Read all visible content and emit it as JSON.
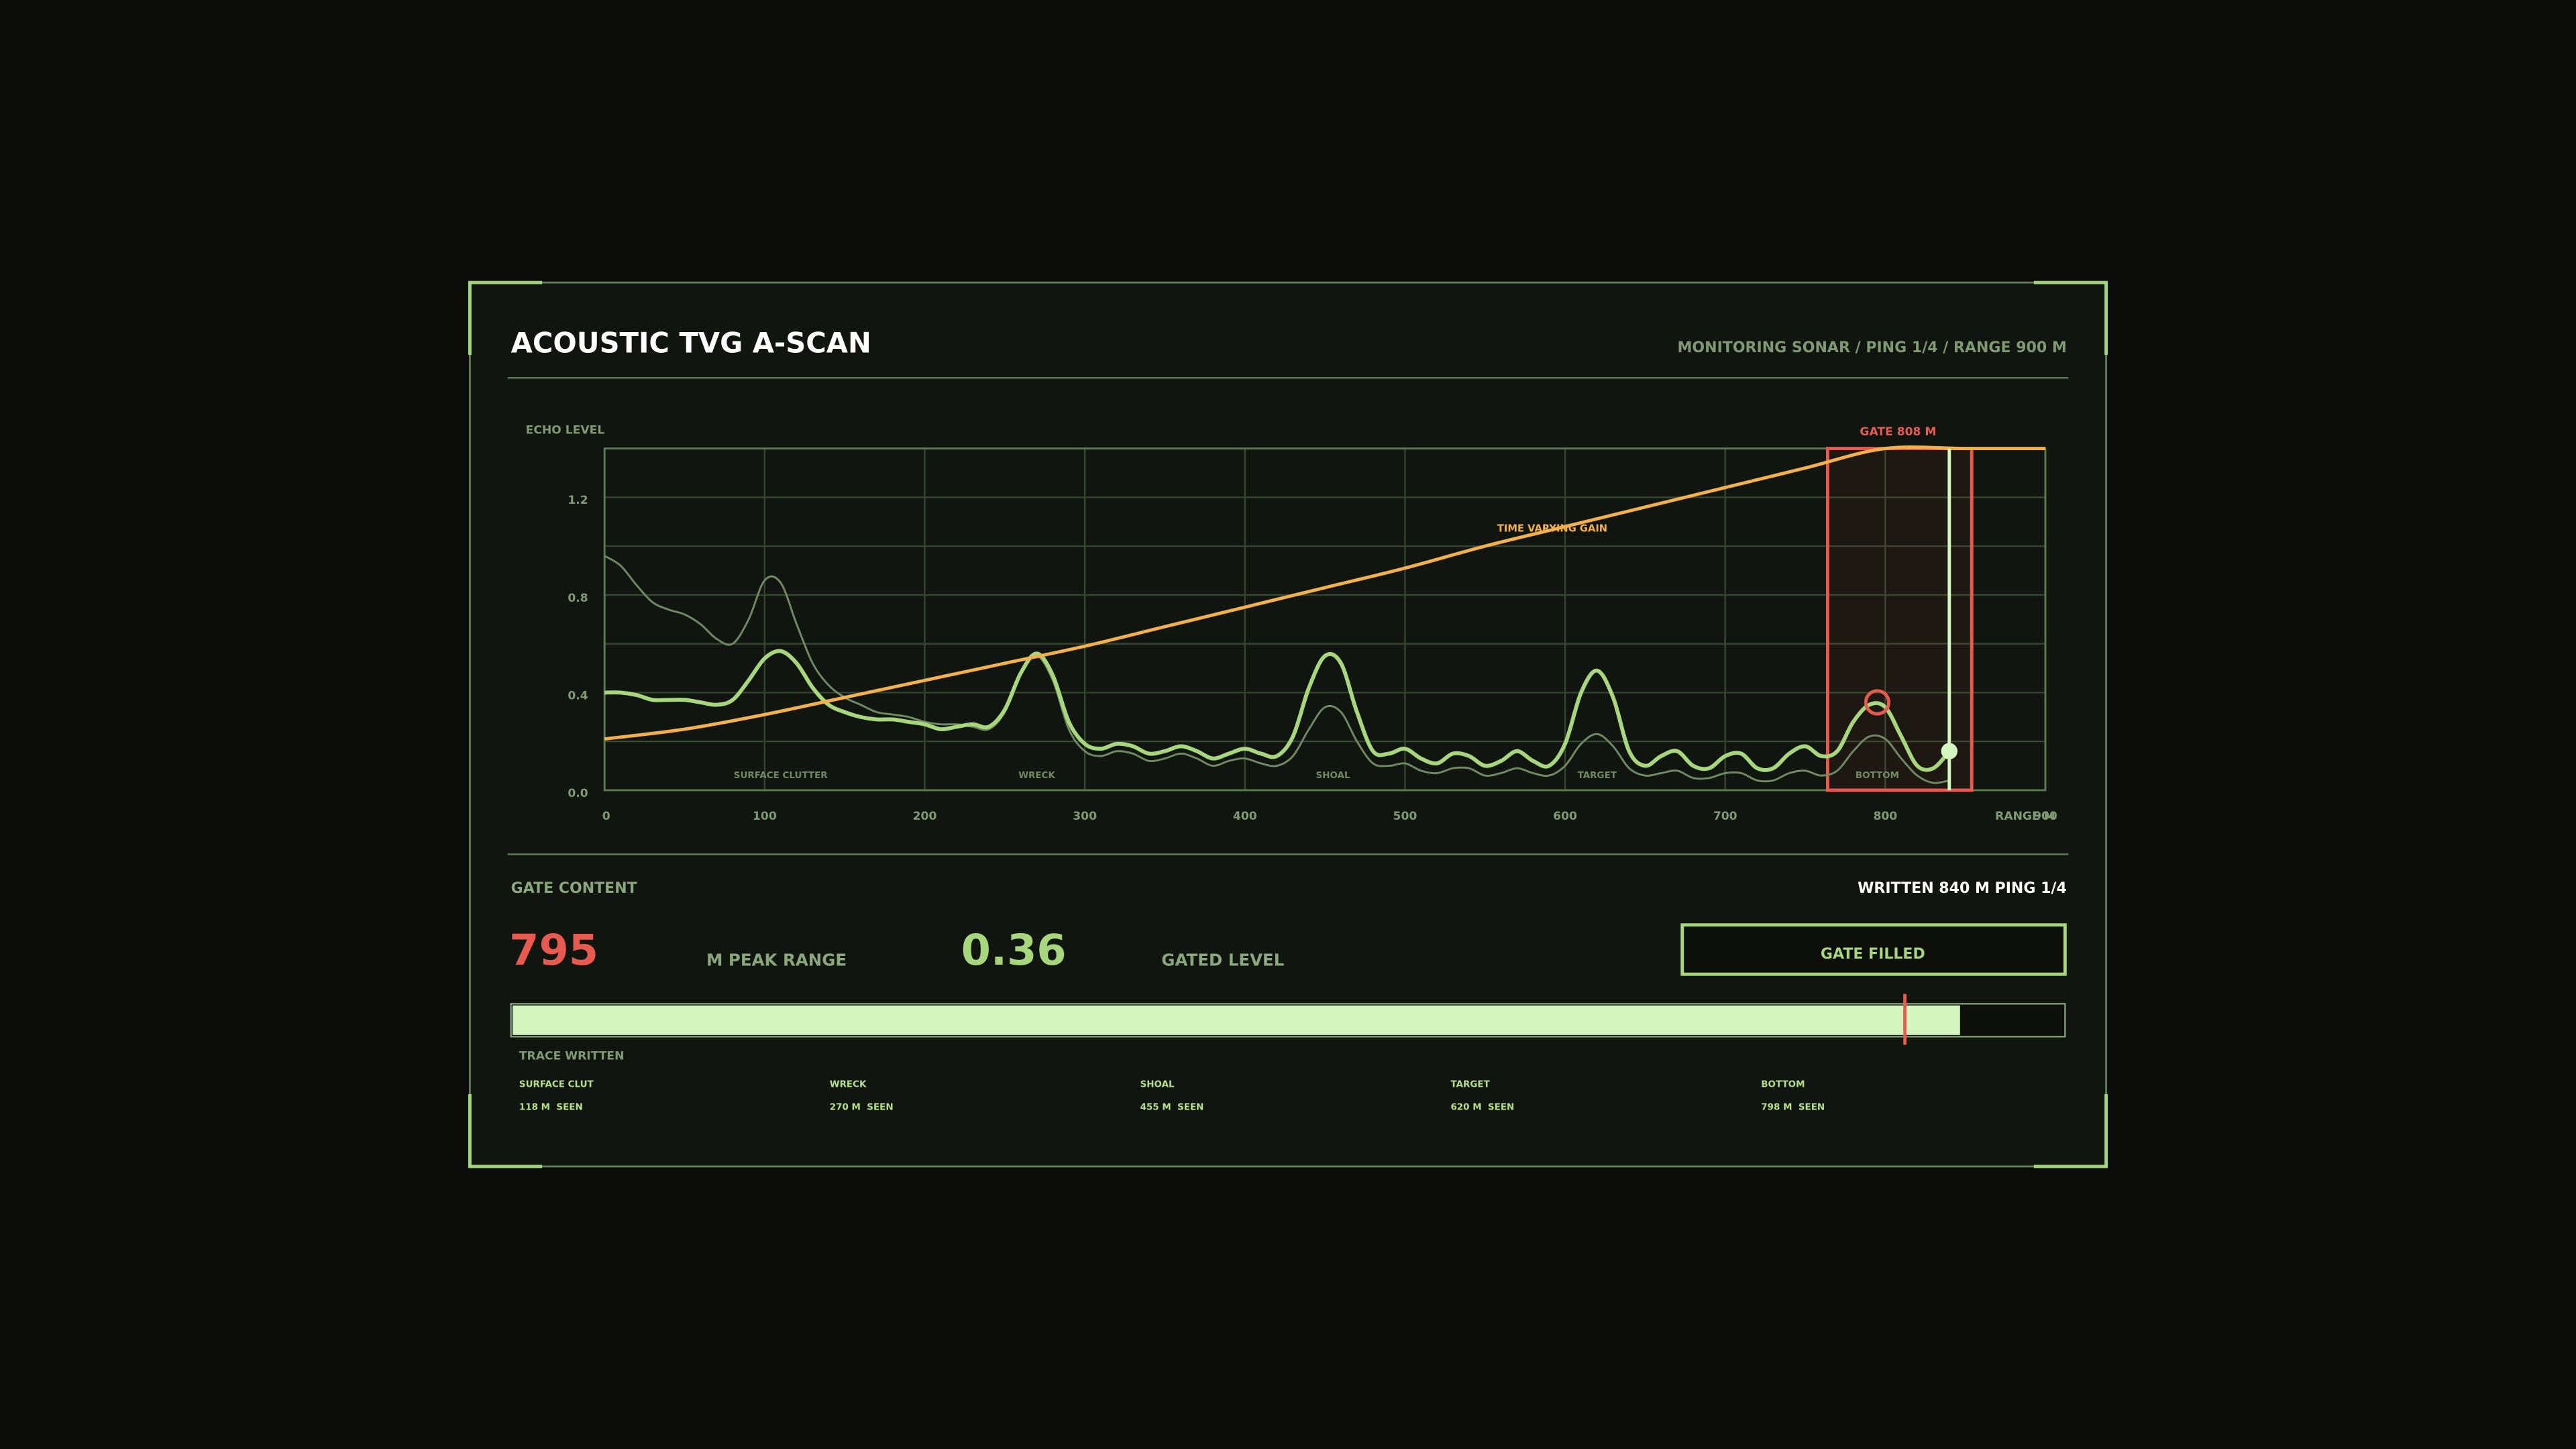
{
  "header": {
    "title": "ACOUSTIC TVG A-SCAN",
    "status": "MONITORING SONAR / PING 1/4 / RANGE 900 M"
  },
  "chart_data": {
    "type": "line",
    "y_label": "ECHO LEVEL",
    "x_label": "RANGE M",
    "xlim": [
      0,
      900
    ],
    "xticks": [
      0,
      100,
      200,
      300,
      400,
      500,
      600,
      700,
      800,
      900
    ],
    "ylim": [
      0,
      1.4
    ],
    "yticks": [
      {
        "value": 0,
        "label": "0.0"
      },
      0.4,
      0.8,
      1.2
    ],
    "ygrid": [
      0.2,
      0.6,
      1.0,
      1.4
    ],
    "grid": true,
    "x": [
      0,
      10,
      20,
      30,
      40,
      50,
      60,
      70,
      80,
      90,
      100,
      110,
      120,
      130,
      140,
      150,
      160,
      170,
      180,
      190,
      200,
      210,
      220,
      230,
      240,
      250,
      260,
      270,
      280,
      290,
      300,
      310,
      320,
      330,
      340,
      350,
      360,
      370,
      380,
      390,
      400,
      410,
      420,
      430,
      440,
      450,
      460,
      470,
      480,
      490,
      500,
      510,
      520,
      530,
      540,
      550,
      560,
      570,
      580,
      590,
      600,
      610,
      620,
      630,
      640,
      650,
      660,
      670,
      680,
      690,
      700,
      710,
      720,
      730,
      740,
      750,
      760,
      770,
      780,
      790,
      800,
      810,
      820,
      830,
      840
    ],
    "series": [
      {
        "color": "#6f8a62",
        "width": 1.2,
        "values": [
          0.96,
          0.92,
          0.84,
          0.77,
          0.74,
          0.72,
          0.68,
          0.62,
          0.6,
          0.7,
          0.86,
          0.85,
          0.68,
          0.52,
          0.43,
          0.38,
          0.35,
          0.32,
          0.31,
          0.3,
          0.28,
          0.27,
          0.27,
          0.26,
          0.25,
          0.32,
          0.48,
          0.55,
          0.45,
          0.25,
          0.16,
          0.14,
          0.16,
          0.15,
          0.12,
          0.13,
          0.15,
          0.13,
          0.1,
          0.12,
          0.13,
          0.11,
          0.1,
          0.14,
          0.25,
          0.34,
          0.32,
          0.2,
          0.11,
          0.1,
          0.11,
          0.08,
          0.07,
          0.09,
          0.09,
          0.06,
          0.07,
          0.09,
          0.07,
          0.06,
          0.1,
          0.19,
          0.23,
          0.18,
          0.09,
          0.06,
          0.07,
          0.08,
          0.05,
          0.05,
          0.07,
          0.07,
          0.04,
          0.04,
          0.07,
          0.08,
          0.06,
          0.08,
          0.16,
          0.22,
          0.21,
          0.13,
          0.06,
          0.03,
          0.04
        ]
      },
      {
        "color": "#a8d67c",
        "width": 2.4,
        "values": [
          0.4,
          0.4,
          0.39,
          0.37,
          0.37,
          0.37,
          0.36,
          0.35,
          0.37,
          0.45,
          0.54,
          0.57,
          0.52,
          0.42,
          0.35,
          0.32,
          0.3,
          0.29,
          0.29,
          0.28,
          0.27,
          0.25,
          0.26,
          0.27,
          0.26,
          0.33,
          0.48,
          0.56,
          0.47,
          0.28,
          0.19,
          0.17,
          0.19,
          0.18,
          0.15,
          0.16,
          0.18,
          0.16,
          0.13,
          0.15,
          0.17,
          0.15,
          0.14,
          0.22,
          0.42,
          0.55,
          0.52,
          0.32,
          0.16,
          0.15,
          0.17,
          0.13,
          0.11,
          0.15,
          0.14,
          0.1,
          0.12,
          0.16,
          0.12,
          0.1,
          0.19,
          0.4,
          0.49,
          0.38,
          0.16,
          0.1,
          0.14,
          0.16,
          0.1,
          0.09,
          0.14,
          0.15,
          0.09,
          0.09,
          0.15,
          0.18,
          0.14,
          0.16,
          0.28,
          0.35,
          0.34,
          0.22,
          0.1,
          0.09,
          0.16
        ]
      },
      {
        "color": "#f4b04a",
        "width": 2,
        "x": [
          0,
          50,
          100,
          150,
          200,
          250,
          300,
          350,
          400,
          450,
          500,
          550,
          600,
          650,
          700,
          750,
          800,
          850,
          900
        ],
        "values": [
          0.21,
          0.25,
          0.31,
          0.38,
          0.45,
          0.52,
          0.59,
          0.67,
          0.75,
          0.83,
          0.91,
          1.0,
          1.08,
          1.16,
          1.24,
          1.32,
          1.4,
          1.4,
          1.4
        ]
      }
    ],
    "annotations": [
      {
        "text": "SURFACE CLUTTER",
        "x": 110
      },
      {
        "text": "WRECK",
        "x": 270
      },
      {
        "text": "SHOAL",
        "x": 455
      },
      {
        "text": "TARGET",
        "x": 620
      },
      {
        "text": "BOTTOM",
        "x": 795
      }
    ],
    "curve_label": {
      "text": "TIME VARYING GAIN",
      "x": 592,
      "y": 1.07
    },
    "gate": {
      "label": "GATE 808 M",
      "start": 764,
      "end": 854,
      "center": 808
    },
    "peak": {
      "x": 795,
      "y": 0.36
    },
    "cursor": {
      "x": 840,
      "y": 0.16
    }
  },
  "readout": {
    "title": "GATE CONTENT",
    "status": "WRITTEN 840 M  PING 1/4",
    "peak_label": "M PEAK RANGE",
    "level_label": "GATED LEVEL",
    "button": "GATE FILLED",
    "progress_label": "TRACE WRITTEN",
    "items": [
      {
        "label": "SURFACE CLUT",
        "value": "118 M  SEEN"
      },
      {
        "label": "WRECK",
        "value": "270 M  SEEN"
      },
      {
        "label": "SHOAL",
        "value": "455 M  SEEN"
      },
      {
        "label": "TARGET",
        "value": "620 M  SEEN"
      },
      {
        "label": "BOTTOM",
        "value": "798 M  SEEN"
      }
    ]
  }
}
